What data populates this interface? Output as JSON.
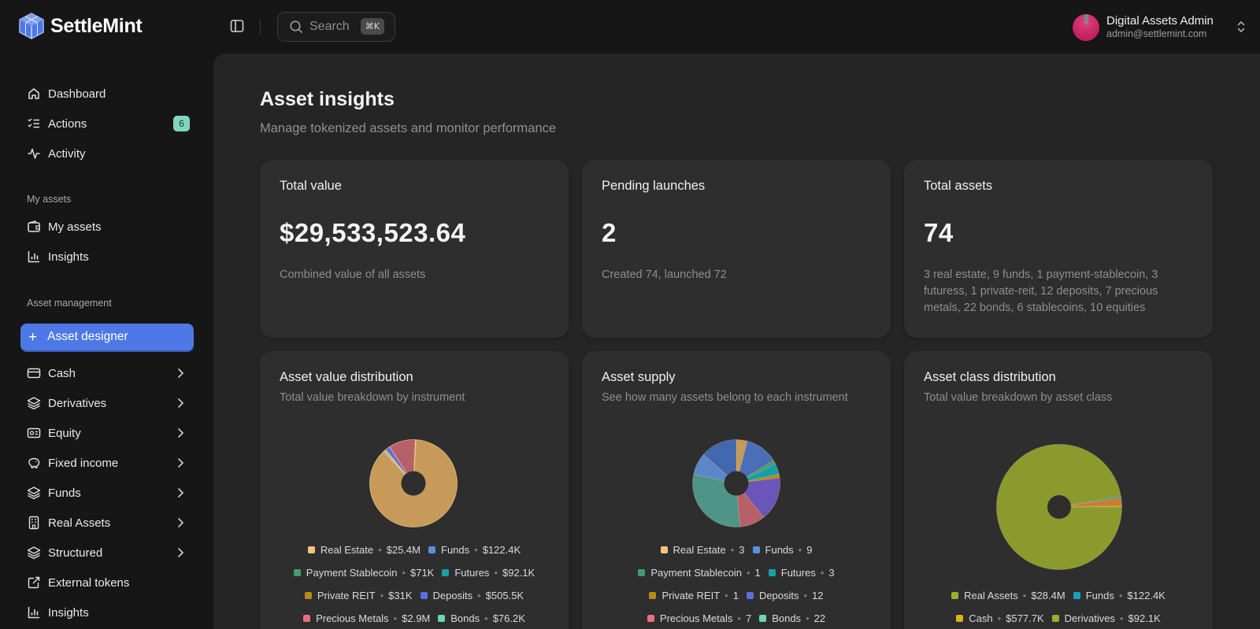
{
  "brand": {
    "name": "SettleMint"
  },
  "search": {
    "placeholder": "Search",
    "shortcut": "⌘K"
  },
  "user": {
    "name": "Digital Assets Admin",
    "email": "admin@settlemint.com"
  },
  "sidebar": {
    "items": [
      {
        "label": "Dashboard",
        "icon": "home-icon"
      },
      {
        "label": "Actions",
        "icon": "list-checks-icon",
        "badge": "6"
      },
      {
        "label": "Activity",
        "icon": "activity-icon"
      }
    ],
    "my_assets_label": "My assets",
    "my_assets_items": [
      {
        "label": "My assets",
        "icon": "wallet-icon"
      },
      {
        "label": "Insights",
        "icon": "bar-chart-icon"
      }
    ],
    "asset_management_label": "Asset management",
    "designer_label": "Asset designer",
    "categories": [
      {
        "label": "Cash",
        "icon": "credit-card-icon"
      },
      {
        "label": "Derivatives",
        "icon": "layers-icon"
      },
      {
        "label": "Equity",
        "icon": "id-card-icon"
      },
      {
        "label": "Fixed income",
        "icon": "piggy-bank-icon"
      },
      {
        "label": "Funds",
        "icon": "layers-icon"
      },
      {
        "label": "Real Assets",
        "icon": "building-icon"
      },
      {
        "label": "Structured",
        "icon": "layers-icon"
      },
      {
        "label": "External tokens",
        "icon": "external-link-icon"
      },
      {
        "label": "Insights",
        "icon": "bar-chart-icon"
      }
    ]
  },
  "page": {
    "title": "Asset insights",
    "subtitle": "Manage tokenized assets and monitor performance"
  },
  "stats": [
    {
      "title": "Total value",
      "value": "$29,533,523.64",
      "desc": "Combined value of all assets"
    },
    {
      "title": "Pending launches",
      "value": "2",
      "desc": "Created 74, launched 72"
    },
    {
      "title": "Total assets",
      "value": "74",
      "desc": "3 real estate, 9 funds, 1 payment-stablecoin, 3 futuress, 1 private-reit, 12 deposits, 7 precious metals, 22 bonds, 6 stablecoins, 10 equities"
    }
  ],
  "charts": [
    {
      "title": "Asset value distribution",
      "subtitle": "Total value breakdown by instrument",
      "legend": [
        [
          {
            "label": "Real Estate",
            "value": "$25.4M",
            "color": "#f5c27a"
          },
          {
            "label": "Funds",
            "value": "$122.4K",
            "color": "#5b8fd9"
          }
        ],
        [
          {
            "label": "Payment Stablecoin",
            "value": "$71K",
            "color": "#3f9e6c"
          },
          {
            "label": "Futures",
            "value": "$92.1K",
            "color": "#18a0a8"
          }
        ],
        [
          {
            "label": "Private REIT",
            "value": "$31K",
            "color": "#b38b17"
          },
          {
            "label": "Deposits",
            "value": "$505.5K",
            "color": "#5b6fe0"
          }
        ],
        [
          {
            "label": "Precious Metals",
            "value": "$2.9M",
            "color": "#e86f7a"
          },
          {
            "label": "Bonds",
            "value": "$76.2K",
            "color": "#6fd4b5"
          }
        ]
      ]
    },
    {
      "title": "Asset supply",
      "subtitle": "See how many assets belong to each instrument",
      "legend": [
        [
          {
            "label": "Real Estate",
            "value": "3",
            "color": "#f5c27a"
          },
          {
            "label": "Funds",
            "value": "9",
            "color": "#5b8fd9"
          }
        ],
        [
          {
            "label": "Payment Stablecoin",
            "value": "1",
            "color": "#3f9e6c"
          },
          {
            "label": "Futures",
            "value": "3",
            "color": "#18a0a8"
          }
        ],
        [
          {
            "label": "Private REIT",
            "value": "1",
            "color": "#b38b17"
          },
          {
            "label": "Deposits",
            "value": "12",
            "color": "#5b6fe0"
          }
        ],
        [
          {
            "label": "Precious Metals",
            "value": "7",
            "color": "#e86f7a"
          },
          {
            "label": "Bonds",
            "value": "22",
            "color": "#6fd4b5"
          }
        ]
      ]
    },
    {
      "title": "Asset class distribution",
      "subtitle": "Total value breakdown by asset class",
      "legend": [
        [
          {
            "label": "Real Assets",
            "value": "$28.4M",
            "color": "#9aaf2c"
          },
          {
            "label": "Funds",
            "value": "$122.4K",
            "color": "#18a0c0"
          }
        ],
        [
          {
            "label": "Cash",
            "value": "$577.7K",
            "color": "#d7b41f"
          },
          {
            "label": "Derivatives",
            "value": "$92.1K",
            "color": "#9aaf2c"
          }
        ]
      ]
    }
  ],
  "chart_data": [
    {
      "type": "pie",
      "title": "Asset value distribution",
      "categories": [
        "Real Estate",
        "Funds",
        "Payment Stablecoin",
        "Futures",
        "Private REIT",
        "Deposits",
        "Precious Metals",
        "Bonds"
      ],
      "values": [
        25400000,
        122400,
        71000,
        92100,
        31000,
        505500,
        2900000,
        76200
      ],
      "colors": [
        "#c79a5a",
        "#5b8fd9",
        "#3f9e6c",
        "#18a0a8",
        "#b38b17",
        "#5b6fe0",
        "#b8606a",
        "#6fd4b5"
      ]
    },
    {
      "type": "pie",
      "title": "Asset supply",
      "categories": [
        "Real Estate",
        "Funds",
        "Payment Stablecoin",
        "Futures",
        "Private REIT",
        "Deposits",
        "Precious Metals",
        "Bonds",
        "Stablecoins",
        "Equities"
      ],
      "values": [
        3,
        9,
        1,
        3,
        1,
        12,
        7,
        22,
        6,
        10
      ],
      "colors": [
        "#c79a5a",
        "#4a6fb8",
        "#3f9e6c",
        "#18a0a8",
        "#b38b17",
        "#6a55b8",
        "#b8606a",
        "#4f9488",
        "#5a88c8",
        "#4268b0"
      ]
    },
    {
      "type": "pie",
      "title": "Asset class distribution",
      "categories": [
        "Real Assets",
        "Funds",
        "Cash",
        "Derivatives"
      ],
      "values": [
        28400000,
        122400,
        577700,
        92100
      ],
      "colors": [
        "#8a9a2c",
        "#18a0c0",
        "#d07a2a",
        "#9aaf2c"
      ]
    }
  ]
}
